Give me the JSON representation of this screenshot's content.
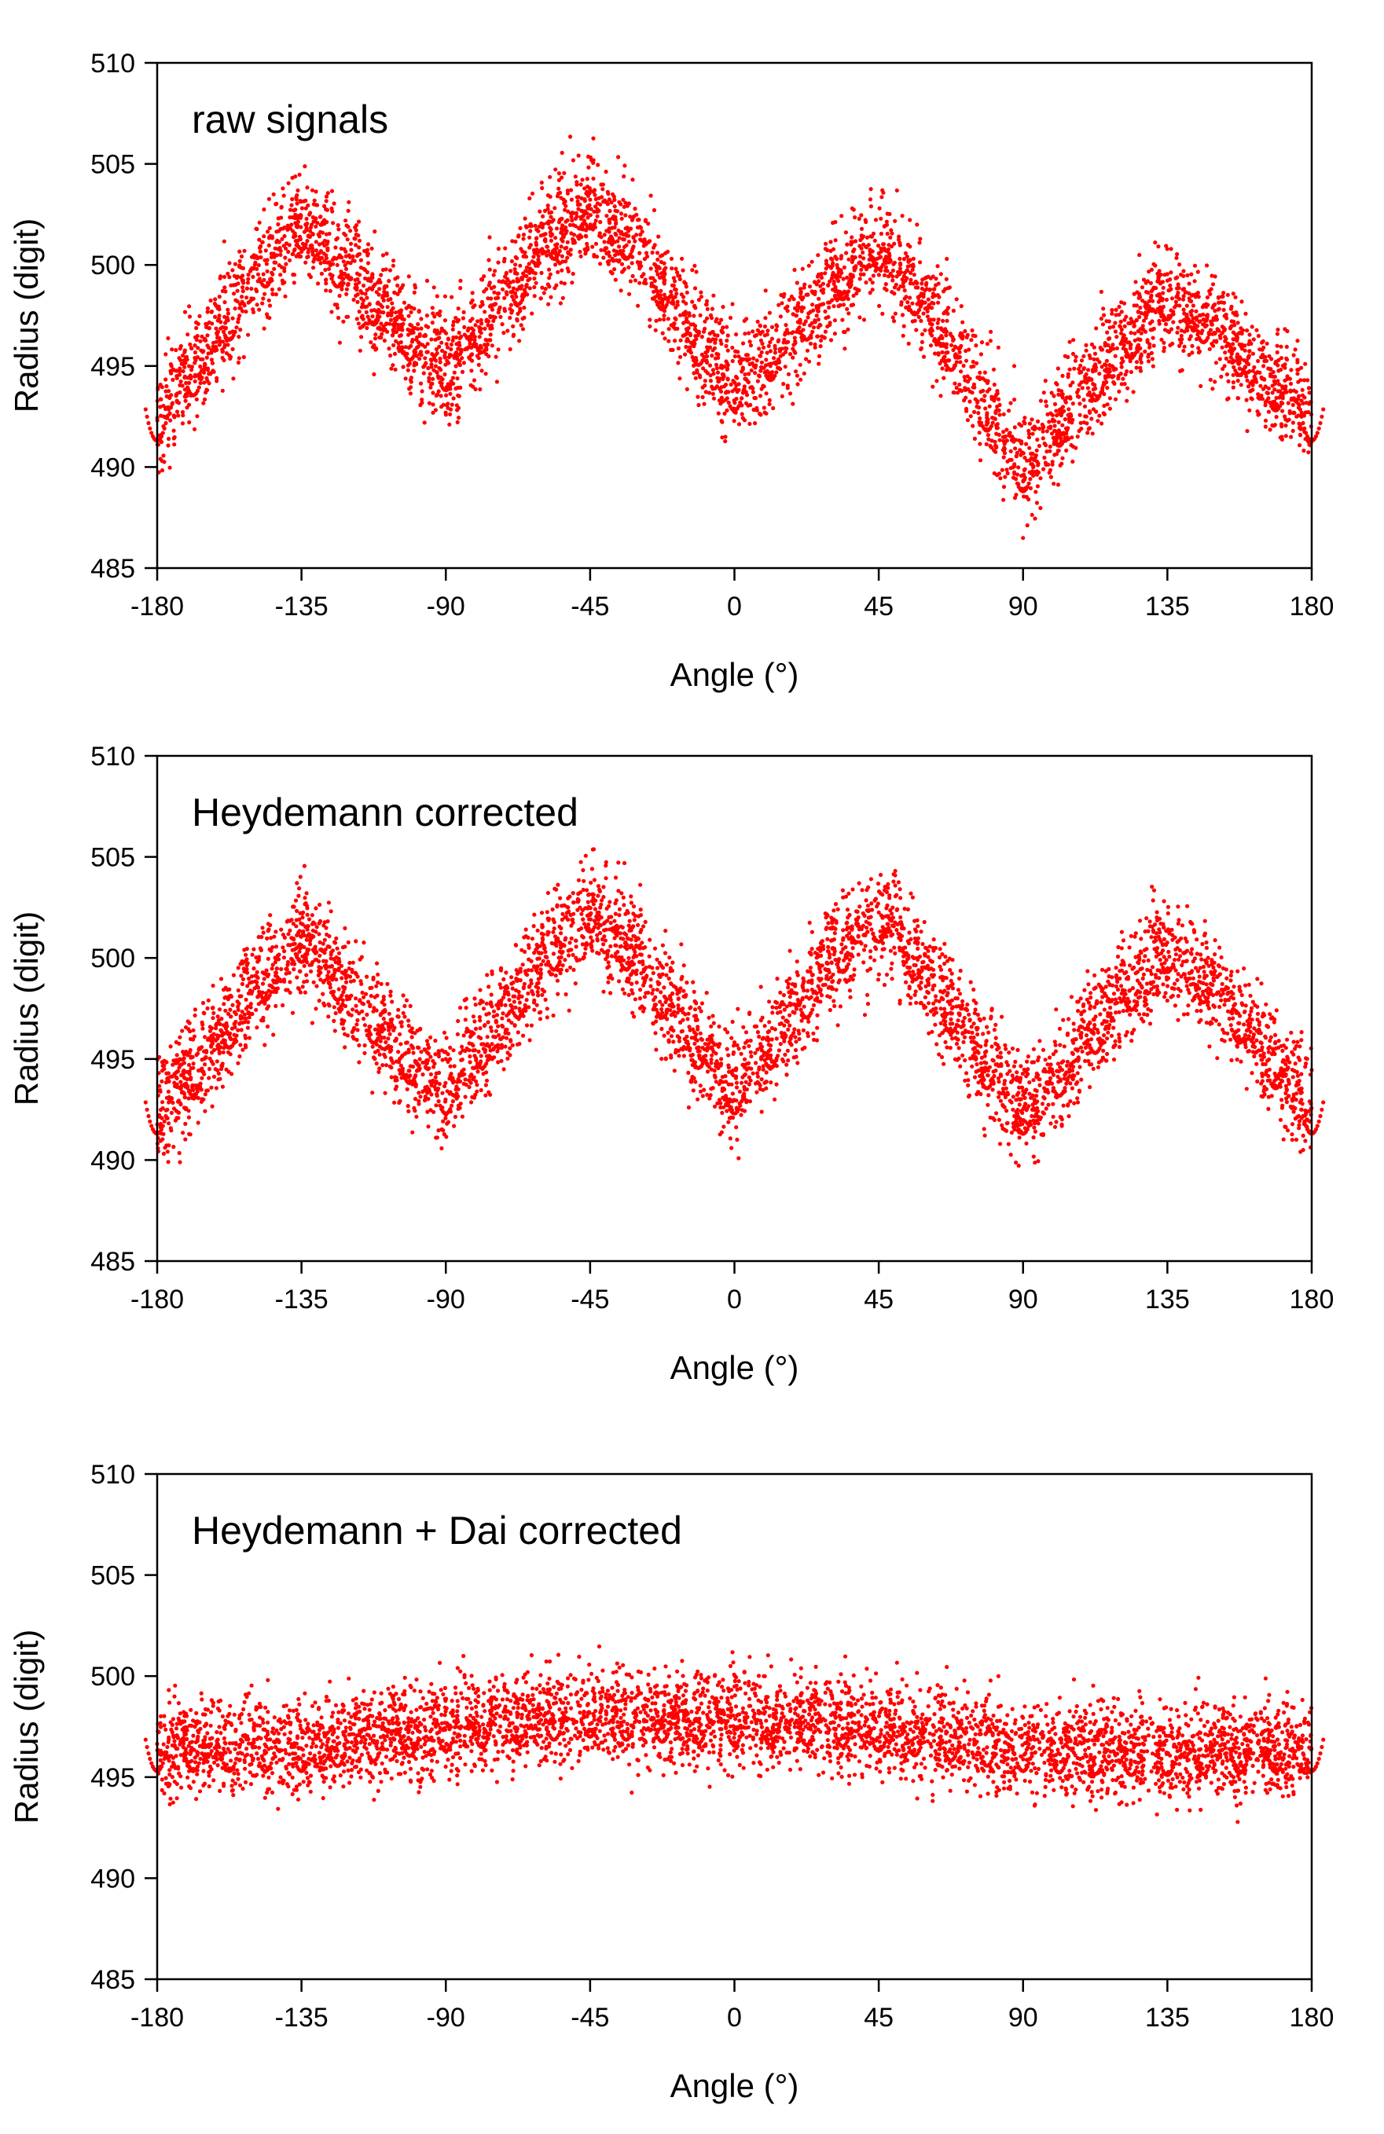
{
  "figure": {
    "panels": [
      {
        "title": "raw signals"
      },
      {
        "title": "Heydemann corrected"
      },
      {
        "title": "Heydemann + Dai corrected"
      }
    ]
  },
  "chart_data": [
    {
      "type": "scatter",
      "title": "raw signals",
      "xlabel": "Angle (°)",
      "ylabel": "Radius (digit)",
      "xlim": [
        -180,
        180
      ],
      "ylim": [
        485,
        510
      ],
      "xticks": [
        -180,
        -135,
        -90,
        -45,
        0,
        45,
        90,
        135,
        180
      ],
      "yticks": [
        485,
        490,
        495,
        500,
        505,
        510
      ],
      "grid": false,
      "series": [
        {
          "color": "#ff0000",
          "x": [
            -180,
            -165,
            -150,
            -135,
            -120,
            -105,
            -90,
            -75,
            -60,
            -45,
            -30,
            -15,
            0,
            15,
            30,
            45,
            60,
            75,
            90,
            105,
            120,
            135,
            150,
            165,
            180
          ],
          "y": [
            492.5,
            495.5,
            499.5,
            502,
            499.5,
            497,
            495,
            497.5,
            501,
            503,
            501,
            497,
            494,
            496,
            499,
            501,
            498,
            494,
            490,
            493,
            496,
            498.5,
            497,
            494.5,
            492.5
          ],
          "spread": 1.4
        }
      ]
    },
    {
      "type": "scatter",
      "title": "Heydemann corrected",
      "xlabel": "Angle (°)",
      "ylabel": "Radius (digit)",
      "xlim": [
        -180,
        180
      ],
      "ylim": [
        485,
        510
      ],
      "xticks": [
        -180,
        -135,
        -90,
        -45,
        0,
        45,
        90,
        135,
        180
      ],
      "yticks": [
        485,
        490,
        495,
        500,
        505,
        510
      ],
      "grid": false,
      "series": [
        {
          "color": "#ff0000",
          "x": [
            -180,
            -165,
            -150,
            -135,
            -120,
            -105,
            -90,
            -75,
            -60,
            -45,
            -30,
            -15,
            0,
            15,
            30,
            45,
            60,
            75,
            90,
            105,
            120,
            135,
            150,
            165,
            180
          ],
          "y": [
            492.5,
            495,
            498.5,
            501,
            498.5,
            495.5,
            493.5,
            496.5,
            500,
            502.5,
            500,
            496.5,
            493.5,
            496.5,
            500,
            502,
            499.5,
            495.5,
            492.5,
            495,
            498,
            500.5,
            498.5,
            495.5,
            492.5
          ],
          "spread": 1.4
        }
      ]
    },
    {
      "type": "scatter",
      "title": "Heydemann + Dai corrected",
      "xlabel": "Angle (°)",
      "ylabel": "Radius (digit)",
      "xlim": [
        -180,
        180
      ],
      "ylim": [
        485,
        510
      ],
      "xticks": [
        -180,
        -135,
        -90,
        -45,
        0,
        45,
        90,
        135,
        180
      ],
      "yticks": [
        485,
        490,
        495,
        500,
        505,
        510
      ],
      "grid": false,
      "series": [
        {
          "color": "#ff0000",
          "x": [
            -180,
            -135,
            -90,
            -60,
            -45,
            -30,
            0,
            30,
            45,
            60,
            90,
            120,
            135,
            180
          ],
          "y": [
            496.5,
            496.5,
            497.5,
            498,
            498.2,
            498,
            497.8,
            497.8,
            497.5,
            497.2,
            496.5,
            496.3,
            496.3,
            496.5
          ],
          "spread": 1.2
        }
      ]
    }
  ]
}
